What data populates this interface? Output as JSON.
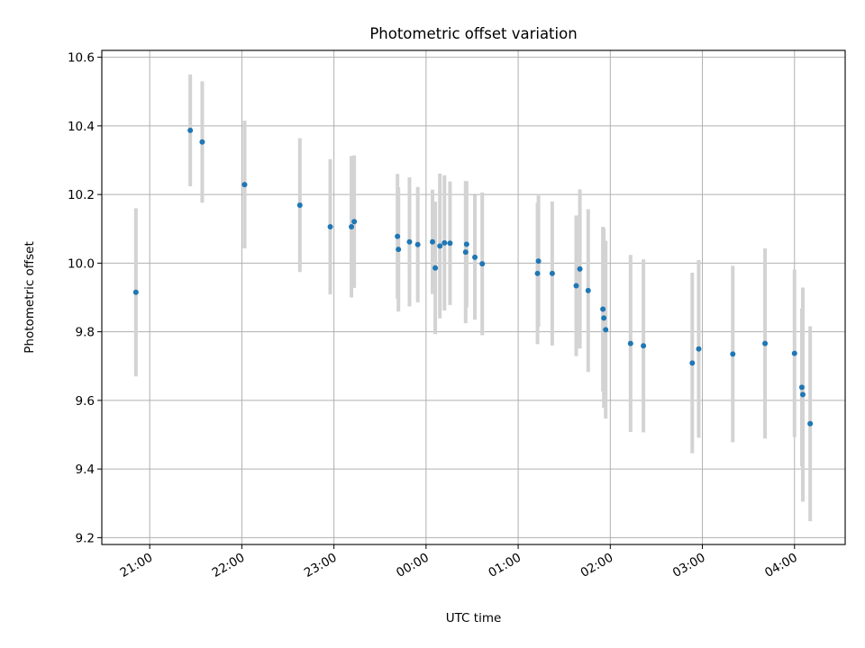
{
  "chart_data": {
    "type": "scatter",
    "title": "Photometric offset variation",
    "xlabel": "UTC time",
    "ylabel": "Photometric offset",
    "x_ticks": [
      "21:00",
      "22:00",
      "23:00",
      "00:00",
      "01:00",
      "02:00",
      "03:00",
      "04:00"
    ],
    "y_ticks": [
      "9.2",
      "9.4",
      "9.6",
      "9.8",
      "10.0",
      "10.2",
      "10.4",
      "10.6"
    ],
    "x_unit": "hours (UTC, continuing past midnight)",
    "xlim": [
      20.48,
      28.55
    ],
    "ylim": [
      9.18,
      10.62
    ],
    "grid": true,
    "colors": {
      "points": "#1f77b4",
      "error_bars": "#d3d3d3",
      "grid": "#b0b0b0"
    },
    "series": [
      {
        "points": [
          {
            "x": 20.85,
            "y": 9.915,
            "err": 0.245
          },
          {
            "x": 21.44,
            "y": 10.387,
            "err": 0.163
          },
          {
            "x": 21.57,
            "y": 10.353,
            "err": 0.177
          },
          {
            "x": 22.03,
            "y": 10.229,
            "err": 0.186
          },
          {
            "x": 22.63,
            "y": 10.169,
            "err": 0.195
          },
          {
            "x": 22.96,
            "y": 10.106,
            "err": 0.197
          },
          {
            "x": 23.19,
            "y": 10.106,
            "err": 0.206
          },
          {
            "x": 23.22,
            "y": 10.121,
            "err": 0.193
          },
          {
            "x": 23.69,
            "y": 10.078,
            "err": 0.182
          },
          {
            "x": 23.7,
            "y": 10.04,
            "err": 0.181
          },
          {
            "x": 23.82,
            "y": 10.062,
            "err": 0.188
          },
          {
            "x": 23.91,
            "y": 10.054,
            "err": 0.168
          },
          {
            "x": 24.07,
            "y": 10.062,
            "err": 0.152
          },
          {
            "x": 24.1,
            "y": 9.986,
            "err": 0.193
          },
          {
            "x": 24.15,
            "y": 10.05,
            "err": 0.211
          },
          {
            "x": 24.2,
            "y": 10.059,
            "err": 0.197
          },
          {
            "x": 24.26,
            "y": 10.058,
            "err": 0.18
          },
          {
            "x": 24.43,
            "y": 10.032,
            "err": 0.207
          },
          {
            "x": 24.44,
            "y": 10.055,
            "err": 0.184
          },
          {
            "x": 24.53,
            "y": 10.017,
            "err": 0.182
          },
          {
            "x": 24.61,
            "y": 9.998,
            "err": 0.208
          },
          {
            "x": 25.21,
            "y": 9.97,
            "err": 0.206
          },
          {
            "x": 25.22,
            "y": 10.006,
            "err": 0.191
          },
          {
            "x": 25.37,
            "y": 9.97,
            "err": 0.21
          },
          {
            "x": 25.63,
            "y": 9.934,
            "err": 0.205
          },
          {
            "x": 25.67,
            "y": 9.983,
            "err": 0.232
          },
          {
            "x": 25.76,
            "y": 9.92,
            "err": 0.237
          },
          {
            "x": 25.92,
            "y": 9.866,
            "err": 0.24
          },
          {
            "x": 25.93,
            "y": 9.84,
            "err": 0.262
          },
          {
            "x": 25.95,
            "y": 9.806,
            "err": 0.259
          },
          {
            "x": 26.22,
            "y": 9.766,
            "err": 0.258
          },
          {
            "x": 26.36,
            "y": 9.759,
            "err": 0.252
          },
          {
            "x": 26.89,
            "y": 9.709,
            "err": 0.263
          },
          {
            "x": 26.96,
            "y": 9.75,
            "err": 0.259
          },
          {
            "x": 27.33,
            "y": 9.735,
            "err": 0.257
          },
          {
            "x": 27.68,
            "y": 9.766,
            "err": 0.277
          },
          {
            "x": 28.0,
            "y": 9.737,
            "err": 0.244
          },
          {
            "x": 28.08,
            "y": 9.638,
            "err": 0.23
          },
          {
            "x": 28.09,
            "y": 9.617,
            "err": 0.312
          },
          {
            "x": 28.17,
            "y": 9.532,
            "err": 0.284
          }
        ]
      }
    ]
  }
}
